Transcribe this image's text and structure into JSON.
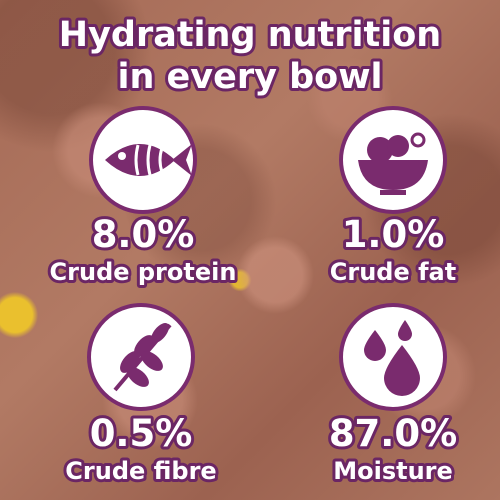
{
  "title_lines": [
    "Hydrating nutrition",
    "in every bowl"
  ],
  "items": [
    {
      "value": "8.0%",
      "label": "Crude protein"
    },
    {
      "value": "1.0%",
      "label": "Crude fat"
    },
    {
      "value": "0.5%",
      "label": "Crude fibre"
    },
    {
      "value": "87.0%",
      "label": "Moisture"
    }
  ]
}
